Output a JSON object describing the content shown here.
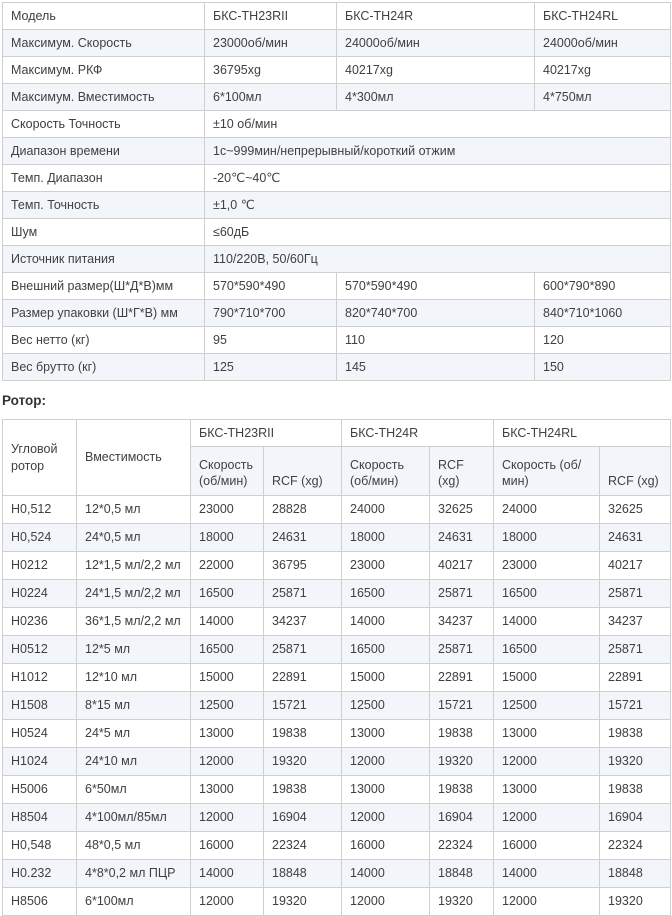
{
  "colors": {
    "stripe": "#f2f6fb",
    "border": "#cfcfcf",
    "text": "#404040"
  },
  "spec_table": {
    "rows": [
      {
        "label": "Модель",
        "values": [
          "БКС-TH23RII",
          "БКС-TH24R",
          "БКС-TH24RL"
        ]
      },
      {
        "label": "Максимум. Скорость",
        "values": [
          "23000об/мин",
          "24000об/мин",
          "24000об/мин"
        ]
      },
      {
        "label": "Максимум. РКФ",
        "values": [
          "36795xg",
          "40217xg",
          "40217xg"
        ]
      },
      {
        "label": "Максимум. Вместимость",
        "values": [
          "6*100мл",
          "4*300мл",
          "4*750мл"
        ]
      },
      {
        "label": "Скорость Точность",
        "span_value": "±10 об/мин"
      },
      {
        "label": "Диапазон времени",
        "span_value": "1с~999мин/непрерывный/короткий отжим"
      },
      {
        "label": "Темп. Диапазон",
        "span_value": "-20℃~40℃"
      },
      {
        "label": "Темп. Точность",
        "span_value": "±1,0 ℃"
      },
      {
        "label": "Шум",
        "span_value": "≤60дБ"
      },
      {
        "label": "Источник питания",
        "span_value": "110/220В, 50/60Гц"
      },
      {
        "label": "Внешний размер(Ш*Д*В)мм",
        "values": [
          "570*590*490",
          "570*590*490",
          "600*790*890"
        ]
      },
      {
        "label": "Размер упаковки (Ш*Г*В) мм",
        "values": [
          "790*710*700",
          "820*740*700",
          "840*710*1060"
        ]
      },
      {
        "label": "Вес нетто (кг)",
        "values": [
          "95",
          "110",
          "120"
        ]
      },
      {
        "label": "Вес брутто (кг)",
        "values": [
          "125",
          "145",
          "150"
        ]
      }
    ]
  },
  "rotor_heading": "Ротор:",
  "rotor_table": {
    "corner_header": "Угловой ротор",
    "capacity_header": "Вместимость",
    "models": [
      "БКС-TH23RII",
      "БКС-TH24R",
      "БКС-TH24RL"
    ],
    "speed_header": "Скорость (об/мин)",
    "rcf_header": "RCF (xg)",
    "rows": [
      {
        "rotor": "H0,512",
        "capacity": "12*0,5 мл",
        "values": [
          "23000",
          "28828",
          "24000",
          "32625",
          "24000",
          "32625"
        ]
      },
      {
        "rotor": "H0,524",
        "capacity": "24*0,5 мл",
        "values": [
          "18000",
          "24631",
          "18000",
          "24631",
          "18000",
          "24631"
        ]
      },
      {
        "rotor": "H0212",
        "capacity": "12*1,5 мл/2,2 мл",
        "values": [
          "22000",
          "36795",
          "23000",
          "40217",
          "23000",
          "40217"
        ]
      },
      {
        "rotor": "H0224",
        "capacity": "24*1,5 мл/2,2 мл",
        "values": [
          "16500",
          "25871",
          "16500",
          "25871",
          "16500",
          "25871"
        ]
      },
      {
        "rotor": "H0236",
        "capacity": "36*1,5 мл/2,2 мл",
        "values": [
          "14000",
          "34237",
          "14000",
          "34237",
          "14000",
          "34237"
        ]
      },
      {
        "rotor": "H0512",
        "capacity": "12*5 мл",
        "values": [
          "16500",
          "25871",
          "16500",
          "25871",
          "16500",
          "25871"
        ]
      },
      {
        "rotor": "H1012",
        "capacity": "12*10 мл",
        "values": [
          "15000",
          "22891",
          "15000",
          "22891",
          "15000",
          "22891"
        ]
      },
      {
        "rotor": "H1508",
        "capacity": "8*15 мл",
        "values": [
          "12500",
          "15721",
          "12500",
          "15721",
          "12500",
          "15721"
        ]
      },
      {
        "rotor": "H0524",
        "capacity": "24*5 мл",
        "values": [
          "13000",
          "19838",
          "13000",
          "19838",
          "13000",
          "19838"
        ]
      },
      {
        "rotor": "H1024",
        "capacity": "24*10 мл",
        "values": [
          "12000",
          "19320",
          "12000",
          "19320",
          "12000",
          "19320"
        ]
      },
      {
        "rotor": "H5006",
        "capacity": "6*50мл",
        "values": [
          "13000",
          "19838",
          "13000",
          "19838",
          "13000",
          "19838"
        ]
      },
      {
        "rotor": "H8504",
        "capacity": "4*100мл/85мл",
        "values": [
          "12000",
          "16904",
          "12000",
          "16904",
          "12000",
          "16904"
        ]
      },
      {
        "rotor": "H0,548",
        "capacity": "48*0,5 мл",
        "values": [
          "16000",
          "22324",
          "16000",
          "22324",
          "16000",
          "22324"
        ]
      },
      {
        "rotor": "H0.232",
        "capacity": "4*8*0,2 мл ПЦР",
        "values": [
          "14000",
          "18848",
          "14000",
          "18848",
          "14000",
          "18848"
        ]
      },
      {
        "rotor": "H8506",
        "capacity": "6*100мл",
        "values": [
          "12000",
          "19320",
          "12000",
          "19320",
          "12000",
          "19320"
        ]
      }
    ]
  }
}
